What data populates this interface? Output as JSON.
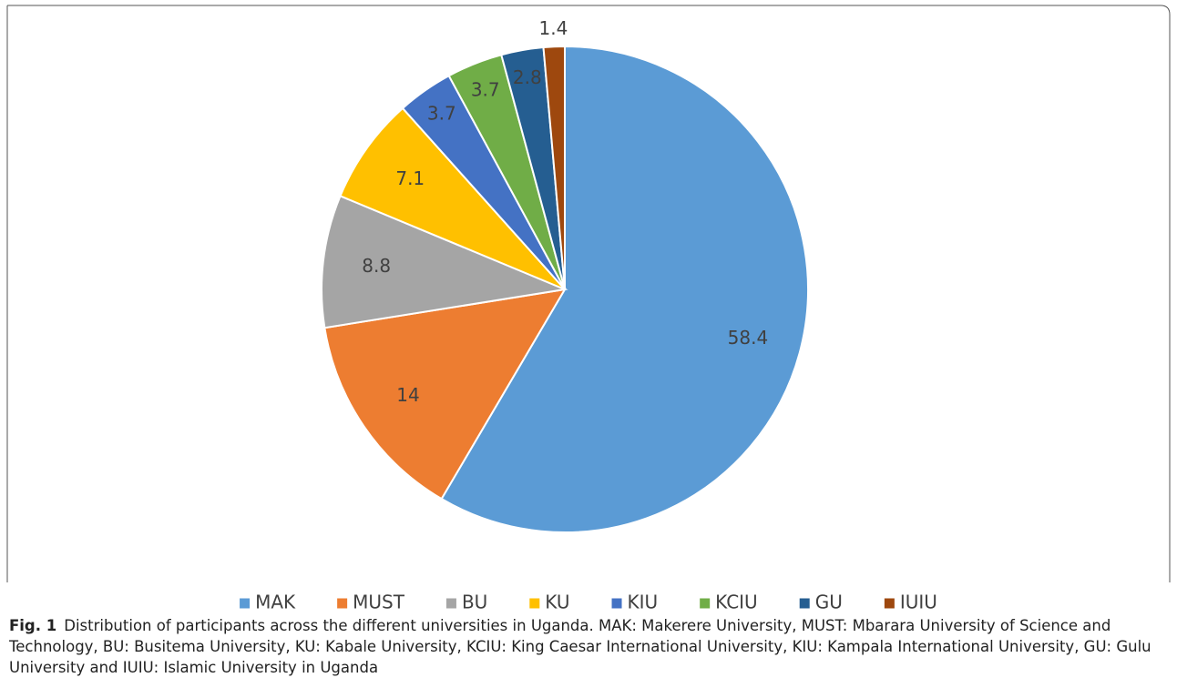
{
  "chart_data": {
    "type": "pie",
    "categories": [
      "MAK",
      "MUST",
      "BU",
      "KU",
      "KIU",
      "KCIU",
      "GU",
      "IUIU"
    ],
    "values": [
      58.4,
      14,
      8.8,
      7.1,
      3.7,
      3.7,
      2.8,
      1.4
    ],
    "colors": [
      "#5b9bd5",
      "#ed7d31",
      "#a5a5a5",
      "#ffc000",
      "#4472c4",
      "#70ad47",
      "#255e91",
      "#9e480e"
    ],
    "legend": "bottom"
  },
  "caption": {
    "label": "Fig. 1",
    "text": "Distribution of participants across the different universities in Uganda. MAK: Makerere University, MUST: Mbarara University of Science and Technology, BU: Busitema University, KU: Kabale University, KCIU: King Caesar International University, KIU: Kampala International University, GU: Gulu University and IUIU: Islamic University in Uganda"
  }
}
